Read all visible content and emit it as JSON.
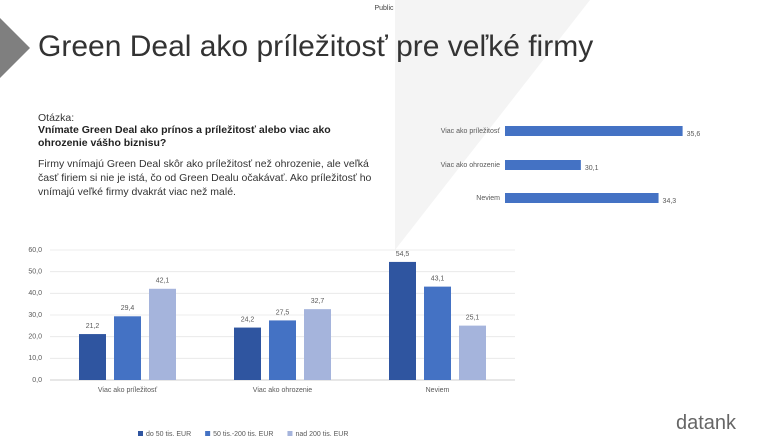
{
  "header": {
    "tag": "Public",
    "title": "Green Deal ako príležitosť pre veľké firmy"
  },
  "question": {
    "label": "Otázka:",
    "text": "Vnímate Green Deal ako prínos a príležitosť alebo viac ako ohrozenie vášho biznisu?"
  },
  "summary": "Firmy vnímajú Green Deal skôr ako príležitosť než ohrozenie, ale veľká časť firiem si nie je istá, čo od Green Dealu očakávať. Ako príležitosť ho vnímajú veľké firmy dvakrát viac než malé.",
  "logo": "datank",
  "chart_data": [
    {
      "type": "bar",
      "orientation": "horizontal",
      "categories": [
        "Viac ako príležitosť",
        "Viac ako ohrozenie",
        "Neviem"
      ],
      "values": [
        35.6,
        30.1,
        34.3
      ],
      "value_labels": [
        "35,6",
        "30,1",
        "34,3"
      ],
      "color": "#4472c4",
      "xlim": [
        26,
        36
      ]
    },
    {
      "type": "bar",
      "orientation": "vertical",
      "categories": [
        "Viac ako príležitosť",
        "Viac ako ohrozenie",
        "Neviem"
      ],
      "series": [
        {
          "name": "do 50 tis. EUR",
          "color": "#2f55a0",
          "values": [
            21.2,
            24.2,
            54.5
          ],
          "value_labels": [
            "21,2",
            "24,2",
            "54,5"
          ]
        },
        {
          "name": "50 tis.-200 tis. EUR",
          "color": "#4472c4",
          "values": [
            29.4,
            27.5,
            43.1
          ],
          "value_labels": [
            "29,4",
            "27,5",
            "43,1"
          ]
        },
        {
          "name": "nad 200 tis. EUR",
          "color": "#a5b4dc",
          "values": [
            42.1,
            32.7,
            25.1
          ],
          "value_labels": [
            "42,1",
            "32,7",
            "25,1"
          ]
        }
      ],
      "ylim": [
        0,
        60
      ],
      "yticks": [
        {
          "value": 0,
          "label": "0,0"
        },
        {
          "value": 10,
          "label": "10,0"
        },
        {
          "value": 20,
          "label": "20,0"
        },
        {
          "value": 30,
          "label": "30,0"
        },
        {
          "value": 40,
          "label": "40,0"
        },
        {
          "value": 50,
          "label": "50,0"
        },
        {
          "value": 60,
          "label": "60,0"
        }
      ],
      "grid": true,
      "legend": "bottom"
    }
  ]
}
